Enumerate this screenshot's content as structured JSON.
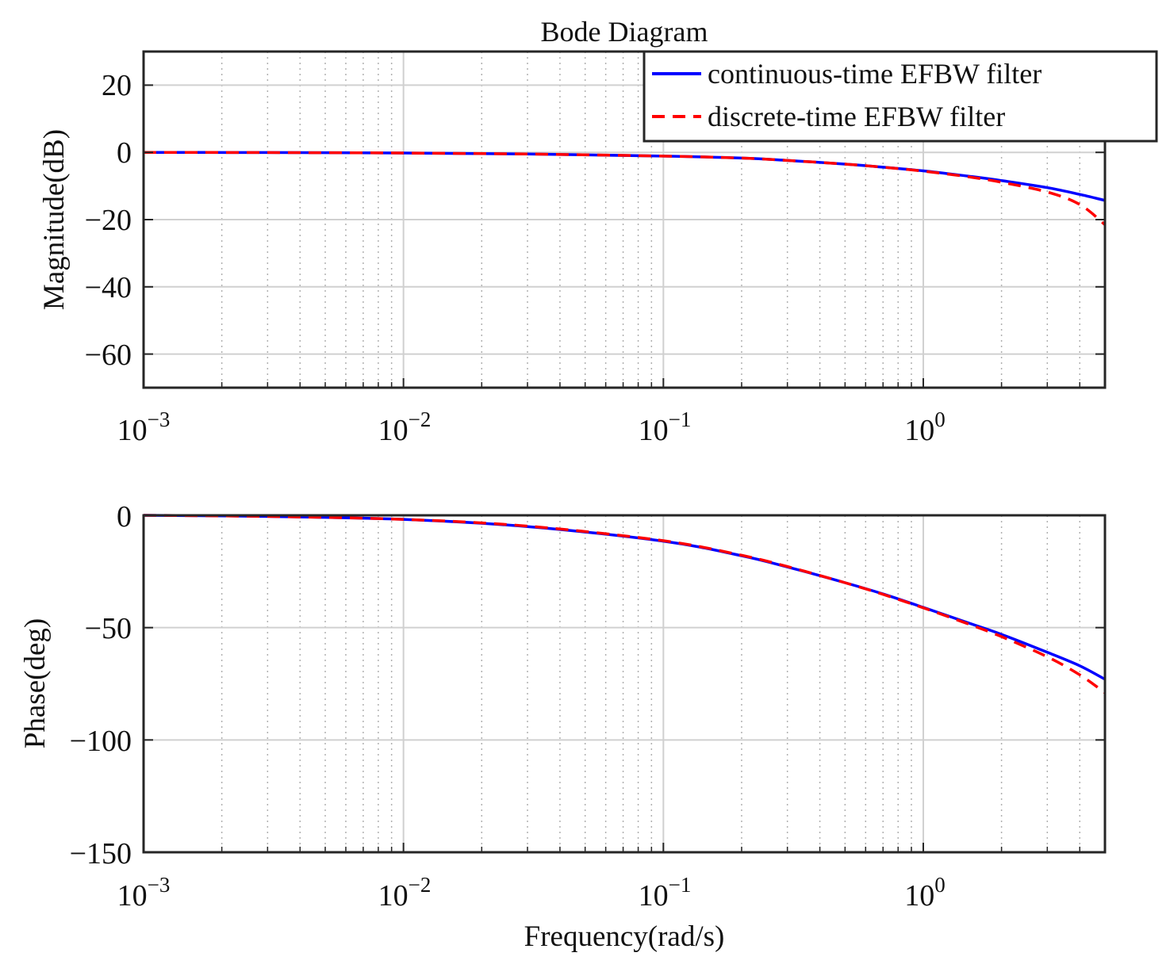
{
  "chart_data": [
    {
      "type": "line",
      "title": "Bode Diagram",
      "ylabel": "Magnitude(dB)",
      "xlabel": "",
      "xscale": "log",
      "xlim": [
        0.001,
        5
      ],
      "ylim": [
        -70,
        30
      ],
      "grid": true,
      "x_tick_labels": [
        {
          "base": "10",
          "exp": "−3"
        },
        {
          "base": "10",
          "exp": "−2"
        },
        {
          "base": "10",
          "exp": "−1"
        },
        {
          "base": "10",
          "exp": "0"
        }
      ],
      "y_tick_labels": [
        "20",
        "0",
        "−20",
        "−40",
        "−60"
      ],
      "y_ticks": [
        20,
        0,
        -20,
        -40,
        -60
      ],
      "legend": {
        "placement": "top-right",
        "entries": [
          "continuous-time EFBW filter",
          "discrete-time EFBW filter"
        ]
      },
      "series": [
        {
          "name": "continuous-time EFBW filter",
          "color": "#0000ff",
          "style": "solid",
          "x": [
            0.001,
            0.003,
            0.01,
            0.03,
            0.1,
            0.2,
            0.3,
            0.5,
            0.7,
            1.0,
            1.5,
            2.0,
            3.0,
            4.0,
            5.0
          ],
          "values": [
            0.0,
            -0.05,
            -0.2,
            -0.5,
            -1.1,
            -1.7,
            -2.4,
            -3.5,
            -4.4,
            -5.5,
            -7.1,
            -8.4,
            -10.5,
            -12.5,
            -14.3
          ]
        },
        {
          "name": "discrete-time EFBW filter",
          "color": "#ff0000",
          "style": "dashed",
          "x": [
            0.001,
            0.003,
            0.01,
            0.03,
            0.1,
            0.2,
            0.3,
            0.5,
            0.7,
            1.0,
            1.5,
            2.0,
            3.0,
            4.0,
            5.0
          ],
          "values": [
            0.0,
            -0.05,
            -0.2,
            -0.5,
            -1.1,
            -1.7,
            -2.4,
            -3.5,
            -4.4,
            -5.6,
            -7.3,
            -8.9,
            -11.8,
            -15.5,
            -21.5
          ]
        }
      ]
    },
    {
      "type": "line",
      "title": "",
      "ylabel": "Phase(deg)",
      "xlabel": "Frequency(rad/s)",
      "xscale": "log",
      "xlim": [
        0.001,
        5
      ],
      "ylim": [
        -150,
        0
      ],
      "grid": true,
      "x_tick_labels": [
        {
          "base": "10",
          "exp": "−3"
        },
        {
          "base": "10",
          "exp": "−2"
        },
        {
          "base": "10",
          "exp": "−1"
        },
        {
          "base": "10",
          "exp": "0"
        }
      ],
      "y_tick_labels": [
        "0",
        "−50",
        "−100",
        "−150"
      ],
      "y_ticks": [
        0,
        -50,
        -100,
        -150
      ],
      "series": [
        {
          "name": "continuous-time EFBW filter",
          "color": "#0000ff",
          "style": "solid",
          "x": [
            0.001,
            0.003,
            0.01,
            0.03,
            0.1,
            0.2,
            0.3,
            0.5,
            0.7,
            1.0,
            1.5,
            2.0,
            3.0,
            4.0,
            5.0
          ],
          "values": [
            0.0,
            -0.5,
            -1.8,
            -5.0,
            -11.5,
            -18.0,
            -23.0,
            -30.0,
            -35.0,
            -41.0,
            -48.0,
            -53.0,
            -61.0,
            -67.0,
            -73.0
          ]
        },
        {
          "name": "discrete-time EFBW filter",
          "color": "#ff0000",
          "style": "dashed",
          "x": [
            0.001,
            0.003,
            0.01,
            0.03,
            0.1,
            0.2,
            0.3,
            0.5,
            0.7,
            1.0,
            1.5,
            2.0,
            3.0,
            4.0,
            5.0
          ],
          "values": [
            0.0,
            -0.5,
            -1.8,
            -4.8,
            -11.3,
            -17.8,
            -22.8,
            -30.0,
            -35.2,
            -41.2,
            -48.5,
            -54.0,
            -63.0,
            -71.0,
            -79.0
          ]
        }
      ]
    }
  ]
}
